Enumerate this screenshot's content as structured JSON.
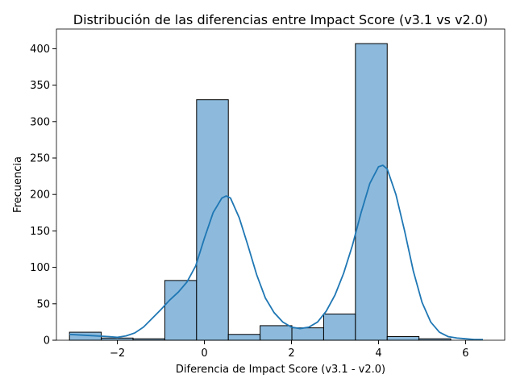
{
  "chart_data": {
    "type": "bar",
    "title": "Distribución de las diferencias entre Impact Score (v3.1 vs v2.0)",
    "xlabel": "Diferencia de Impact Score (v3.1 - v2.0)",
    "ylabel": "Frecuencia",
    "xlim": [
      -3.4,
      6.9
    ],
    "ylim": [
      0,
      427
    ],
    "x_ticks": [
      -2,
      0,
      2,
      4,
      6
    ],
    "x_tick_labels": [
      "−2",
      "0",
      "2",
      "4",
      "6"
    ],
    "y_ticks": [
      0,
      50,
      100,
      150,
      200,
      250,
      300,
      350,
      400
    ],
    "y_tick_labels": [
      "0",
      "50",
      "100",
      "150",
      "200",
      "250",
      "300",
      "350",
      "400"
    ],
    "bin_edges": [
      -3.1,
      -2.37,
      -1.64,
      -0.91,
      -0.18,
      0.55,
      1.28,
      2.01,
      2.74,
      3.47,
      4.2,
      4.93,
      5.66
    ],
    "values": [
      11,
      3,
      2,
      82,
      330,
      8,
      20,
      17,
      36,
      407,
      5,
      2
    ],
    "kde": {
      "x": [
        -3.1,
        -2.8,
        -2.5,
        -2.2,
        -2.0,
        -1.8,
        -1.6,
        -1.4,
        -1.2,
        -1.0,
        -0.8,
        -0.6,
        -0.4,
        -0.2,
        0.0,
        0.2,
        0.4,
        0.5,
        0.6,
        0.8,
        1.0,
        1.2,
        1.4,
        1.6,
        1.8,
        2.0,
        2.2,
        2.4,
        2.6,
        2.8,
        3.0,
        3.2,
        3.4,
        3.6,
        3.8,
        4.0,
        4.1,
        4.2,
        4.4,
        4.6,
        4.8,
        5.0,
        5.2,
        5.4,
        5.6,
        5.8,
        6.0,
        6.2,
        6.4
      ],
      "y": [
        8,
        7,
        6,
        5,
        4,
        6,
        10,
        18,
        30,
        42,
        55,
        66,
        80,
        102,
        140,
        175,
        195,
        198,
        195,
        168,
        130,
        90,
        58,
        38,
        25,
        18,
        16,
        18,
        25,
        40,
        62,
        92,
        130,
        175,
        215,
        238,
        240,
        235,
        200,
        150,
        95,
        52,
        25,
        11,
        5,
        3,
        2,
        1,
        1
      ]
    },
    "bar_color": "#8dbadc",
    "line_color": "#1f77b4",
    "grid": false
  }
}
